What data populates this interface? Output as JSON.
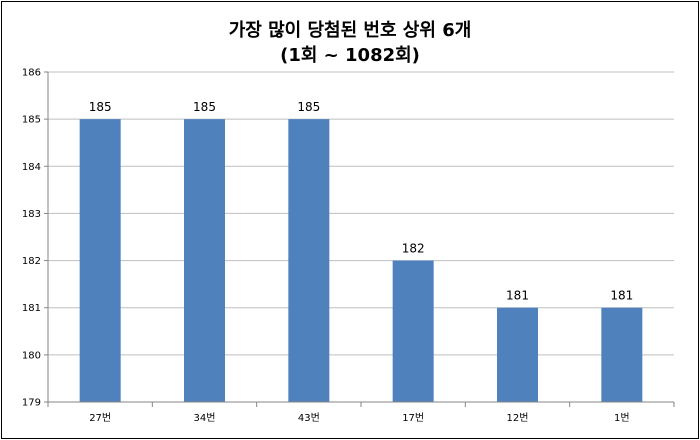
{
  "chart_data": {
    "type": "bar",
    "title": "가장 많이 당첨된 번호 상위 6개",
    "subtitle": "(1회 ~ 1082회)",
    "categories": [
      "27번",
      "34번",
      "43번",
      "17번",
      "12번",
      "1번"
    ],
    "values": [
      185,
      185,
      185,
      182,
      181,
      181
    ],
    "data_labels": [
      "185",
      "185",
      "185",
      "182",
      "181",
      "181"
    ],
    "ylim": [
      179,
      186
    ],
    "yticks": [
      "179",
      "180",
      "181",
      "182",
      "183",
      "184",
      "185",
      "186"
    ],
    "grid": true,
    "bar_color": "#4F81BD",
    "grid_color": "#BFBFBF",
    "legend": "none"
  }
}
